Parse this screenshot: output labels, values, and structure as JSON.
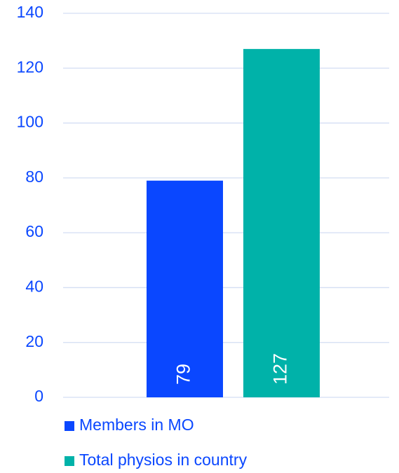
{
  "chart_data": {
    "type": "bar",
    "categories": [
      null
    ],
    "series": [
      {
        "name": "Members in MO",
        "color": "#0a47ff",
        "values": [
          79
        ]
      },
      {
        "name": "Total physios in country",
        "color": "#00b2a9",
        "values": [
          127
        ]
      }
    ],
    "ylim": [
      0,
      140
    ],
    "yticks": [
      0,
      20,
      40,
      60,
      80,
      100,
      120,
      140
    ],
    "grid": true,
    "legend": "bottom"
  }
}
